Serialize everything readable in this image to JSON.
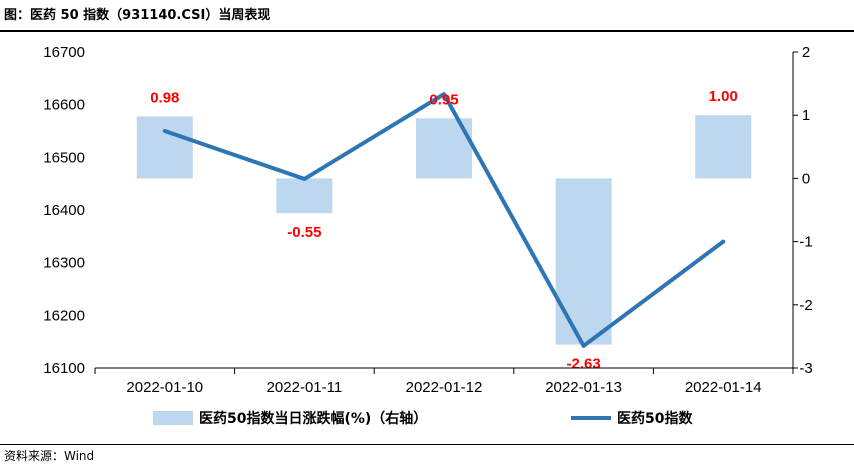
{
  "header": {
    "title": "图：医药 50 指数（931140.CSI）当周表现"
  },
  "footer": {
    "source": "资料来源：Wind"
  },
  "colors": {
    "bar": "#bdd7ee",
    "line": "#2e75b6",
    "data_label": "#ff0000"
  },
  "chart_data": {
    "type": "bar+line",
    "categories": [
      "2022-01-10",
      "2022-01-11",
      "2022-01-12",
      "2022-01-13",
      "2022-01-14"
    ],
    "series": [
      {
        "name": "医药50指数当日涨跌幅(%)（右轴）",
        "type": "bar",
        "axis": "right",
        "values": [
          0.98,
          -0.55,
          0.95,
          -2.63,
          1.0
        ],
        "labels": [
          "0.98",
          "-0.55",
          "0.95",
          "-2.63",
          "1.00"
        ]
      },
      {
        "name": "医药50指数",
        "type": "line",
        "axis": "left",
        "values": [
          16550,
          16459,
          16620,
          16142,
          16340
        ]
      }
    ],
    "left_axis": {
      "min": 16100,
      "max": 16700,
      "step": 100,
      "ticks": [
        "16700",
        "16600",
        "16500",
        "16400",
        "16300",
        "16200",
        "16100"
      ]
    },
    "right_axis": {
      "min": -3,
      "max": 2,
      "step": 1,
      "ticks": [
        "2",
        "1",
        "0",
        "-1",
        "-2",
        "-3"
      ]
    },
    "grid": false,
    "legend_position": "bottom"
  }
}
